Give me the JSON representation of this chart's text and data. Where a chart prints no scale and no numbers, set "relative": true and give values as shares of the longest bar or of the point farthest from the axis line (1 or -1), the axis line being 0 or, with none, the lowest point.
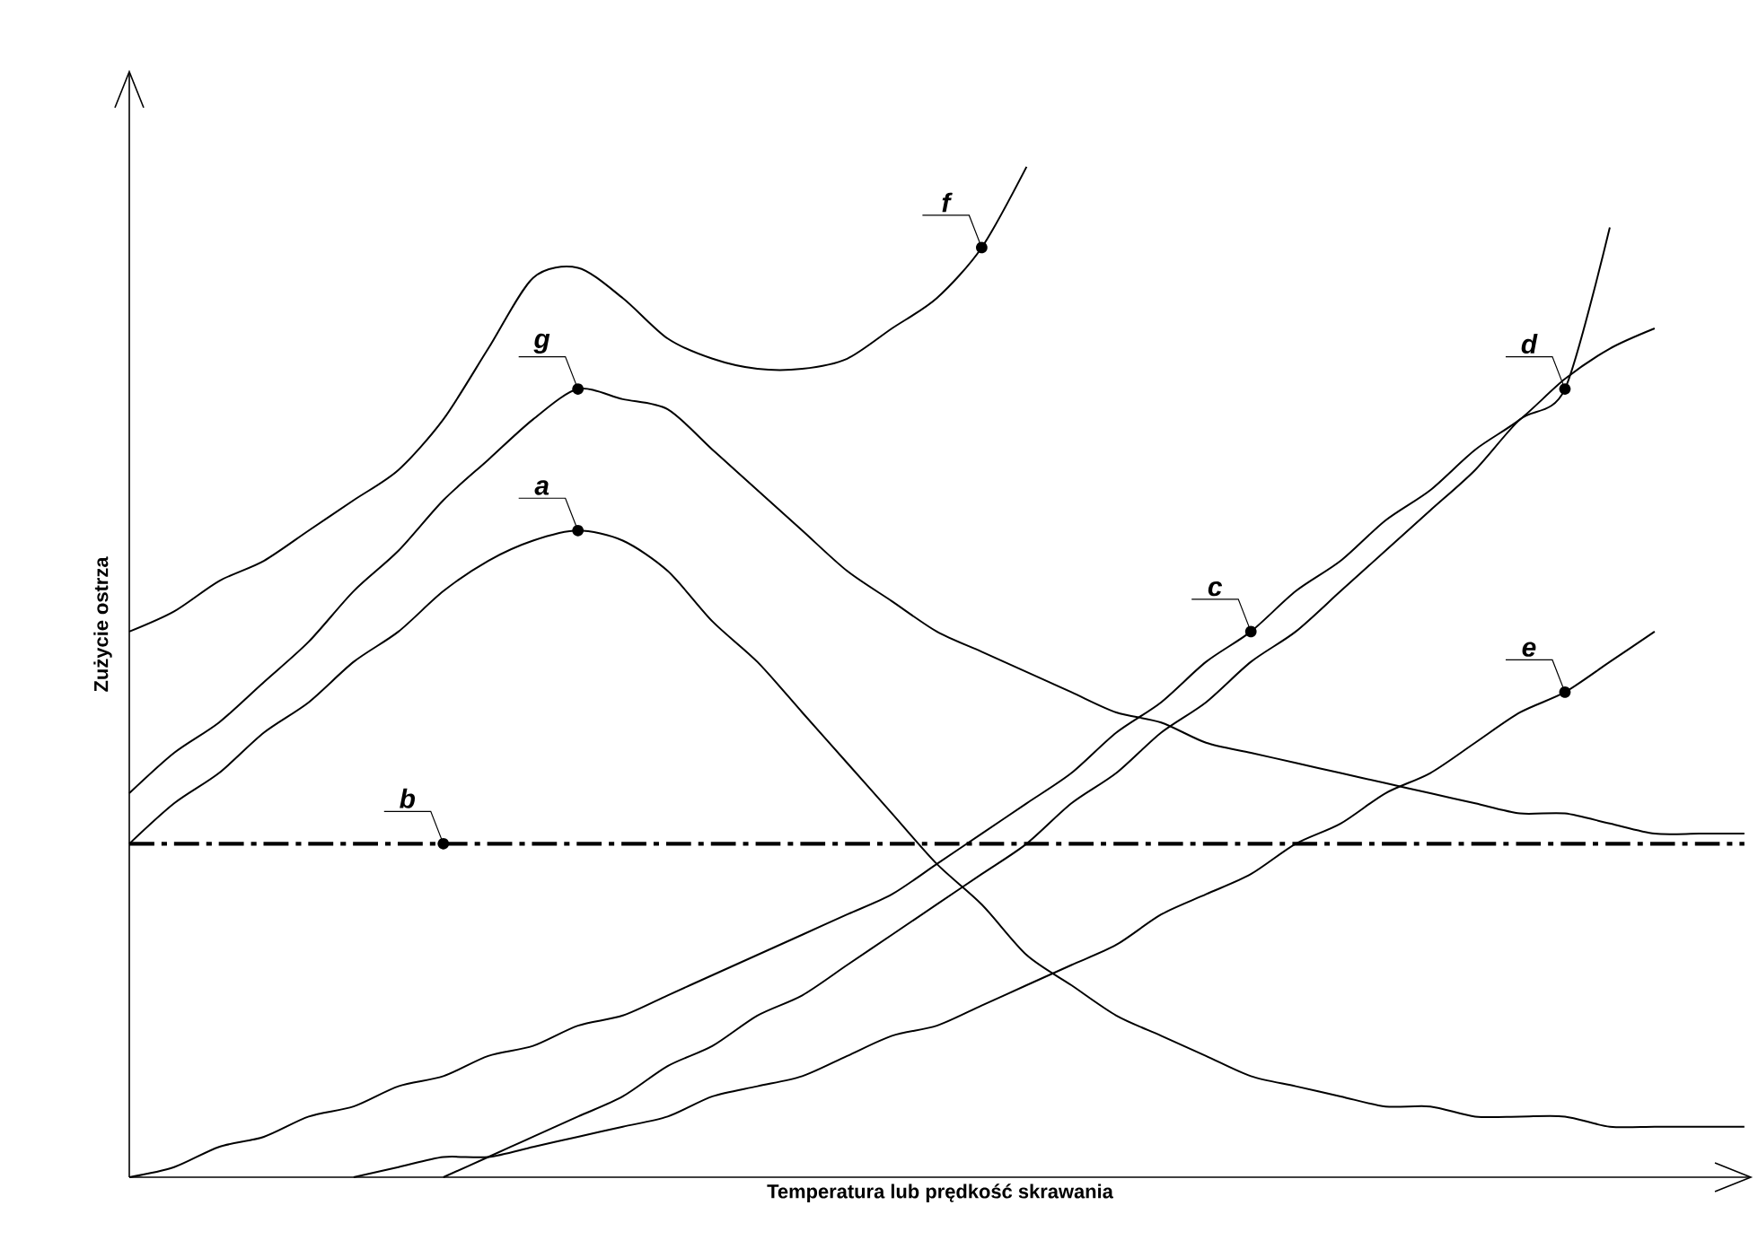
{
  "chart_data": {
    "type": "line",
    "relative": true,
    "xlabel": "Temperatura lub prędkość skrawania",
    "ylabel": "Zużycie ostrza",
    "categories": [
      null,
      null,
      null,
      null,
      null,
      null,
      null,
      null,
      null,
      null,
      null,
      null,
      null,
      null,
      null,
      null,
      null,
      null,
      null,
      null,
      null,
      null,
      null,
      null,
      null,
      null,
      null,
      null,
      null,
      null,
      null,
      null,
      null,
      null,
      null,
      null,
      null
    ],
    "series": [
      {
        "name": "a",
        "color": "#000000",
        "values": [
          0.33,
          0.37,
          0.4,
          0.44,
          0.47,
          0.51,
          0.54,
          0.58,
          0.61,
          0.63,
          0.64,
          0.63,
          0.6,
          0.55,
          0.51,
          0.46,
          0.41,
          0.36,
          0.31,
          0.27,
          0.22,
          0.19,
          0.16,
          0.14,
          0.12,
          0.1,
          0.09,
          0.08,
          0.07,
          0.07,
          0.06,
          0.06,
          0.06,
          0.05,
          0.05,
          0.05,
          0.05
        ]
      },
      {
        "name": "b",
        "color": "#000000",
        "line_style": "dashed",
        "values": [
          0.33,
          0.33,
          0.33,
          0.33,
          0.33,
          0.33,
          0.33,
          0.33,
          0.33,
          0.33,
          0.33,
          0.33,
          0.33,
          0.33,
          0.33,
          0.33,
          0.33,
          0.33,
          0.33,
          0.33,
          0.33,
          0.33,
          0.33,
          0.33,
          0.33,
          0.33,
          0.33,
          0.33,
          0.33,
          0.33,
          0.33,
          0.33,
          0.33,
          0.33,
          0.33,
          0.33,
          0.33
        ]
      },
      {
        "name": "c",
        "color": "#000000",
        "values": [
          0,
          0.01,
          0.03,
          0.04,
          0.06,
          0.07,
          0.09,
          0.1,
          0.12,
          0.13,
          0.15,
          0.16,
          0.18,
          0.2,
          0.22,
          0.24,
          0.26,
          0.28,
          0.31,
          0.34,
          0.37,
          0.4,
          0.44,
          0.47,
          0.51,
          0.54,
          0.58,
          0.61,
          0.65,
          0.68,
          0.72,
          0.75,
          0.79,
          0.82,
          0.84,
          null,
          null
        ]
      },
      {
        "name": "d",
        "color": "#000000",
        "values": [
          null,
          null,
          null,
          null,
          null,
          null,
          null,
          0,
          0.02,
          0.04,
          0.06,
          0.08,
          0.11,
          0.13,
          0.16,
          0.18,
          0.21,
          0.24,
          0.27,
          0.3,
          0.33,
          0.37,
          0.4,
          0.44,
          0.47,
          0.51,
          0.54,
          0.58,
          0.62,
          0.66,
          0.7,
          0.75,
          0.78,
          0.94,
          null,
          null,
          null
        ]
      },
      {
        "name": "e",
        "color": "#000000",
        "values": [
          null,
          null,
          null,
          null,
          null,
          0,
          0.01,
          0.02,
          0.02,
          0.03,
          0.04,
          0.05,
          0.06,
          0.08,
          0.09,
          0.1,
          0.12,
          0.14,
          0.15,
          0.17,
          0.19,
          0.21,
          0.23,
          0.26,
          0.28,
          0.3,
          0.33,
          0.35,
          0.38,
          0.4,
          0.43,
          0.46,
          0.48,
          0.51,
          0.54,
          null,
          null
        ]
      },
      {
        "name": "f",
        "color": "#000000",
        "values": [
          0.54,
          0.56,
          0.59,
          0.61,
          0.64,
          0.67,
          0.7,
          0.75,
          0.82,
          0.89,
          0.9,
          0.87,
          0.83,
          0.81,
          0.8,
          0.8,
          0.81,
          0.84,
          0.87,
          0.92,
          1.0,
          null,
          null,
          null,
          null,
          null,
          null,
          null,
          null,
          null,
          null,
          null,
          null,
          null,
          null,
          null,
          null
        ]
      },
      {
        "name": "g",
        "color": "#000000",
        "values": [
          0.38,
          0.42,
          0.45,
          0.49,
          0.53,
          0.58,
          0.62,
          0.67,
          0.71,
          0.75,
          0.78,
          0.77,
          0.76,
          0.72,
          0.68,
          0.64,
          0.6,
          0.57,
          0.54,
          0.52,
          0.5,
          0.48,
          0.46,
          0.45,
          0.43,
          0.42,
          0.41,
          0.4,
          0.39,
          0.38,
          0.37,
          0.36,
          0.36,
          0.35,
          0.34,
          0.34,
          0.34
        ]
      }
    ]
  }
}
